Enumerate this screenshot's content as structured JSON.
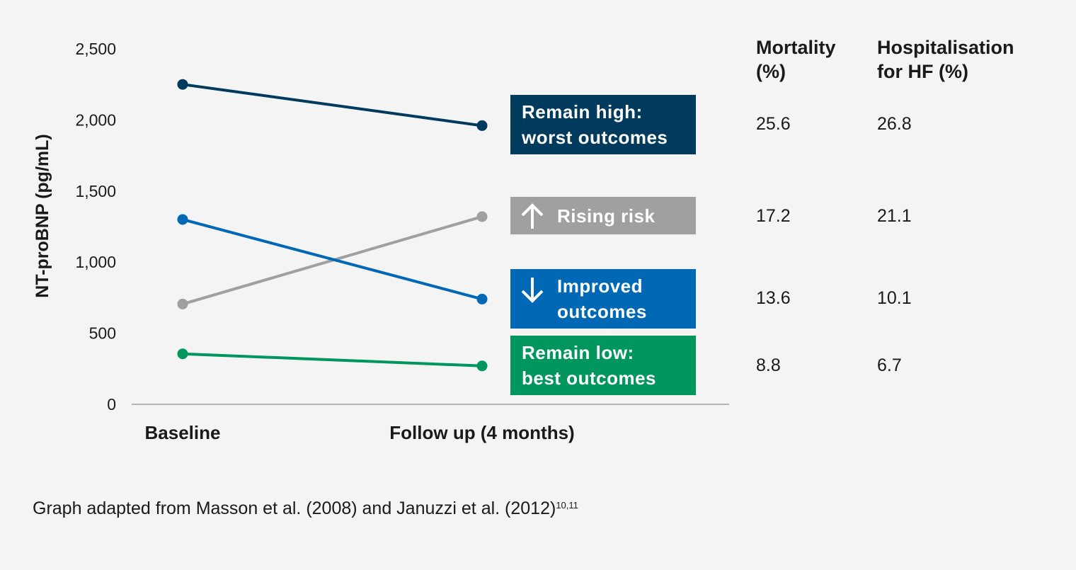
{
  "chart_data": {
    "type": "line",
    "ylabel": "NT-proBNP (pg/mL)",
    "ylim": [
      0,
      2500
    ],
    "yticks": [
      {
        "value": 0,
        "label": "0"
      },
      {
        "value": 500,
        "label": "500"
      },
      {
        "value": 1000,
        "label": "1,000"
      },
      {
        "value": 1500,
        "label": "1,500"
      },
      {
        "value": 2000,
        "label": "2,000"
      },
      {
        "value": 2500,
        "label": "2,500"
      }
    ],
    "categories": [
      "Baseline",
      "Follow up (4 months)"
    ],
    "grid": false,
    "series": [
      {
        "name": "Remain high: worst outcomes",
        "color": "#003a5d",
        "values": [
          2250,
          1960
        ]
      },
      {
        "name": "Rising risk",
        "color": "#a0a0a0",
        "values": [
          705,
          1320
        ]
      },
      {
        "name": "Improved outcomes",
        "color": "#0068b4",
        "values": [
          1300,
          740
        ]
      },
      {
        "name": "Remain low: best outcomes",
        "color": "#00965e",
        "values": [
          355,
          270
        ]
      }
    ]
  },
  "legend_boxes": [
    {
      "line1": "Remain high:",
      "line2": "worst outcomes",
      "icon": "none",
      "color": "#003a5d"
    },
    {
      "line1": "Rising risk",
      "line2": "",
      "icon": "arrow-up-icon",
      "color": "#a0a0a0"
    },
    {
      "line1": "Improved",
      "line2": "outcomes",
      "icon": "arrow-down-icon",
      "color": "#0068b4"
    },
    {
      "line1": "Remain low:",
      "line2": "best outcomes",
      "icon": "none",
      "color": "#00965e"
    }
  ],
  "outcomes_table": {
    "headers": [
      {
        "line1": "Mortality",
        "line2": "(%)"
      },
      {
        "line1": "Hospitalisation",
        "line2": "for HF (%)"
      }
    ],
    "rows": [
      {
        "mortality": "25.6",
        "hospitalisation": "26.8"
      },
      {
        "mortality": "17.2",
        "hospitalisation": "21.1"
      },
      {
        "mortality": "13.6",
        "hospitalisation": "10.1"
      },
      {
        "mortality": "8.8",
        "hospitalisation": "6.7"
      }
    ]
  },
  "source_note": {
    "text": "Graph adapted from Masson et al. (2008) and Januzzi et al. (2012)",
    "superscript": "10,11"
  }
}
